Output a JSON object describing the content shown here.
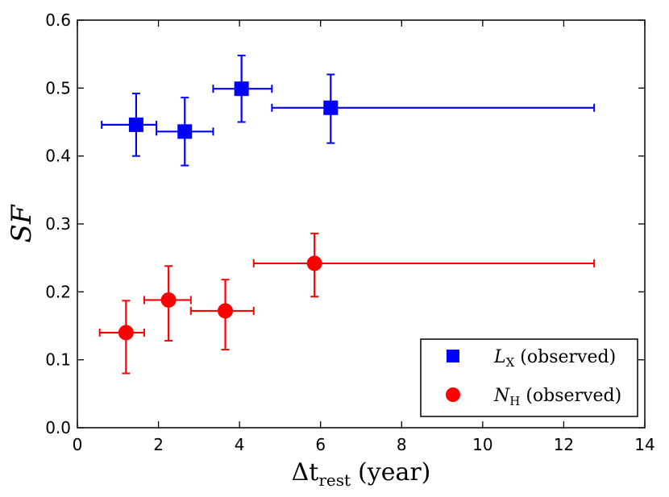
{
  "chart_data": {
    "type": "scatter",
    "title": "",
    "xlabel": {
      "symbol": "Δt",
      "subscript": "rest",
      "unit": "(year)"
    },
    "ylabel": "SF",
    "xlim": [
      0,
      14
    ],
    "ylim": [
      0.0,
      0.6
    ],
    "x_ticks": [
      0,
      2,
      4,
      6,
      8,
      10,
      12,
      14
    ],
    "x_tick_labels": [
      "0",
      "2",
      "4",
      "6",
      "8",
      "10",
      "12",
      "14"
    ],
    "y_ticks": [
      0.0,
      0.1,
      0.2,
      0.3,
      0.4,
      0.5,
      0.6
    ],
    "y_tick_labels": [
      "0.0",
      "0.1",
      "0.2",
      "0.3",
      "0.4",
      "0.5",
      "0.6"
    ],
    "grid": false,
    "legend_position": "bottom-right",
    "series": [
      {
        "name": "L_X (observed)",
        "legend": {
          "symbol": "L",
          "subscript": "X",
          "suffix": "(observed)"
        },
        "marker": "square",
        "color": "#0000ff",
        "points": [
          {
            "x": 1.45,
            "y": 0.446,
            "xlo": 0.6,
            "xhi": 1.95,
            "ylo": 0.4,
            "yhi": 0.492
          },
          {
            "x": 2.65,
            "y": 0.436,
            "xlo": 1.95,
            "xhi": 3.35,
            "ylo": 0.386,
            "yhi": 0.486
          },
          {
            "x": 4.05,
            "y": 0.499,
            "xlo": 3.35,
            "xhi": 4.8,
            "ylo": 0.45,
            "yhi": 0.548
          },
          {
            "x": 6.25,
            "y": 0.471,
            "xlo": 4.8,
            "xhi": 12.75,
            "ylo": 0.419,
            "yhi": 0.52
          }
        ]
      },
      {
        "name": "N_H (observed)",
        "legend": {
          "symbol": "N",
          "subscript": "H",
          "suffix": "(observed)"
        },
        "marker": "circle",
        "color": "#ff0000",
        "points": [
          {
            "x": 1.2,
            "y": 0.14,
            "xlo": 0.55,
            "xhi": 1.65,
            "ylo": 0.08,
            "yhi": 0.187
          },
          {
            "x": 2.25,
            "y": 0.188,
            "xlo": 1.65,
            "xhi": 2.8,
            "ylo": 0.128,
            "yhi": 0.238
          },
          {
            "x": 3.65,
            "y": 0.172,
            "xlo": 2.8,
            "xhi": 4.35,
            "ylo": 0.115,
            "yhi": 0.218
          },
          {
            "x": 5.85,
            "y": 0.242,
            "xlo": 4.35,
            "xhi": 12.75,
            "ylo": 0.193,
            "yhi": 0.286
          }
        ]
      }
    ]
  }
}
